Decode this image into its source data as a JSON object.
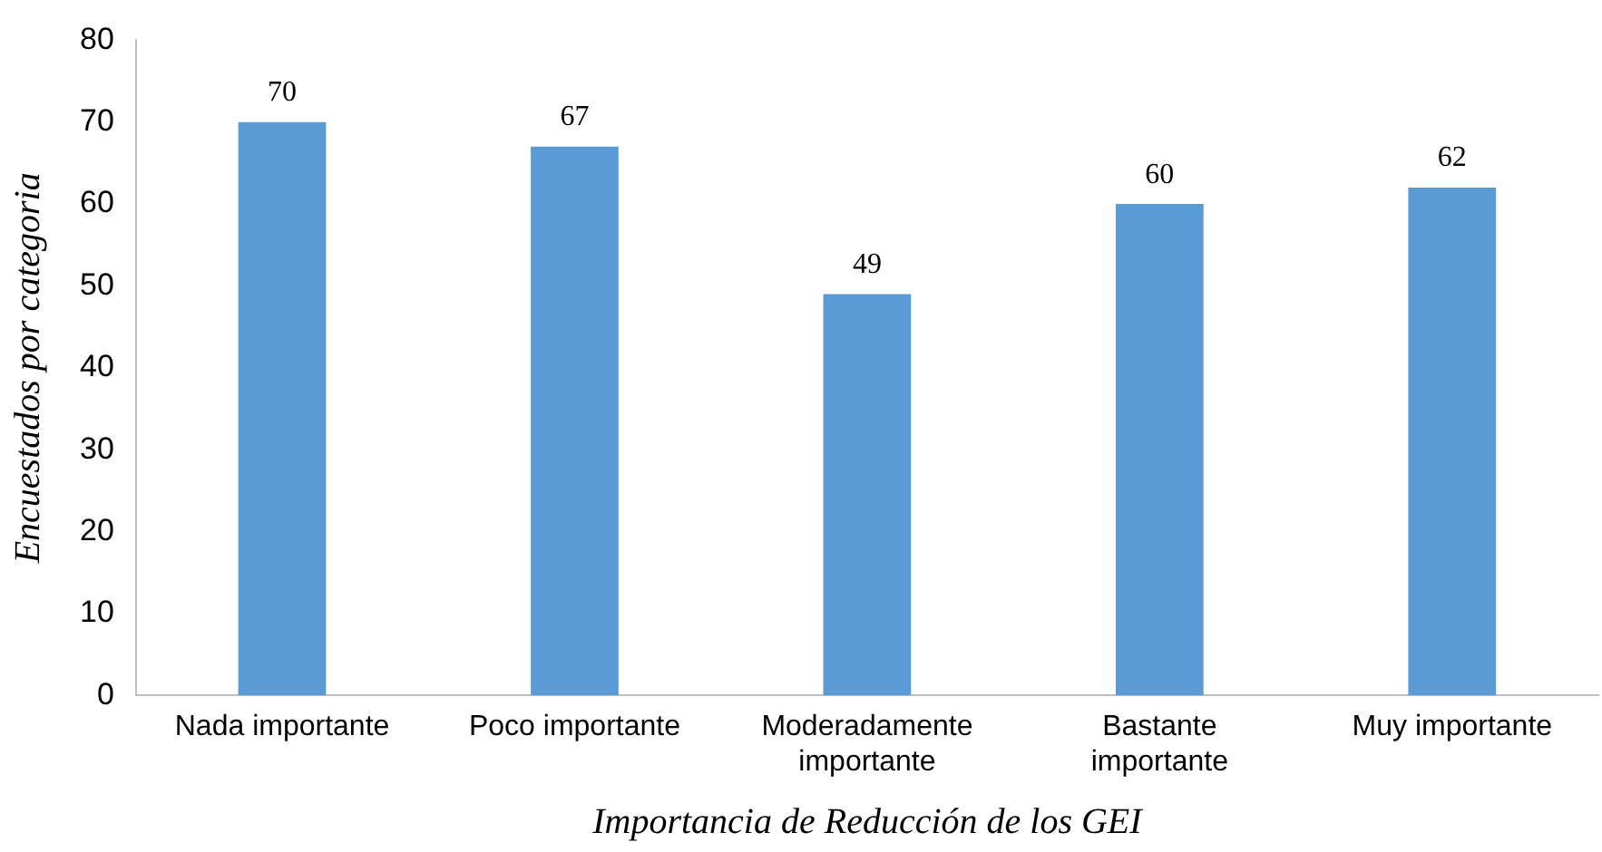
{
  "chart_data": {
    "type": "bar",
    "xlabel": "Importancia de Reducción de los GEI",
    "ylabel": "Encuestados por categoria",
    "categories": [
      "Nada importante",
      "Poco importante",
      "Moderadamente importante",
      "Bastante importante",
      "Muy importante"
    ],
    "values": [
      70,
      67,
      49,
      60,
      62
    ],
    "color": "#5b9bd5",
    "ylim": [
      0,
      80
    ],
    "yticks": [
      0,
      10,
      20,
      30,
      40,
      50,
      60,
      70,
      80
    ],
    "grid": false,
    "legend": false,
    "data_labels": true
  }
}
